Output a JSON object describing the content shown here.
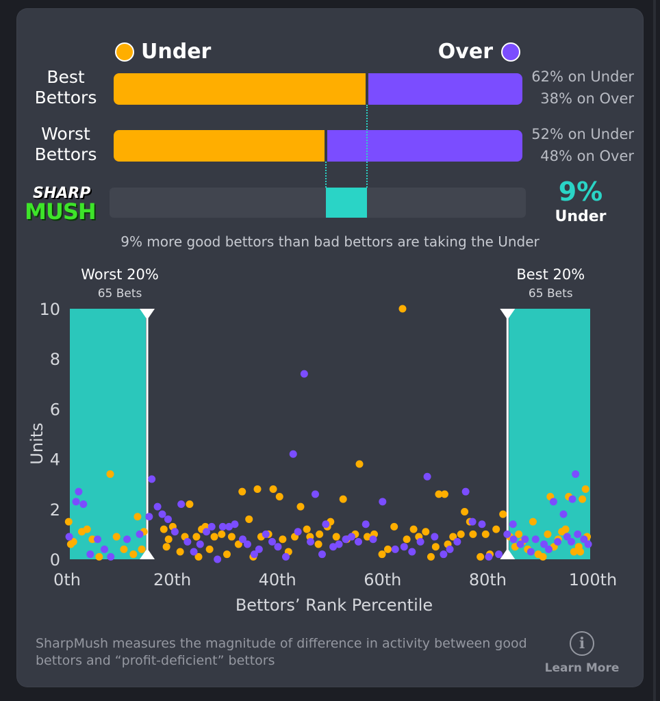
{
  "legend": {
    "under": "Under",
    "over": "Over"
  },
  "rows": [
    {
      "label_line1": "Best",
      "label_line2": "Bettors",
      "under_pct": 62,
      "over_pct": 38,
      "under_text": "62% on Under",
      "over_text": "38% on Over"
    },
    {
      "label_line1": "Worst",
      "label_line2": "Bettors",
      "under_pct": 52,
      "over_pct": 48,
      "under_text": "52% on Under",
      "over_text": "48% on Over"
    }
  ],
  "logo": {
    "line1": "SHARP",
    "line2": "MUSH"
  },
  "sharpmush": {
    "value": "9%",
    "direction": "Under",
    "caption": "9% more good bettors than bad bettors are taking the Under"
  },
  "colors": {
    "under": "#ffae00",
    "over": "#7b4dff",
    "accent": "#2ad4c6"
  },
  "chart_data": {
    "type": "scatter",
    "xlabel": "Bettors’ Rank Percentile",
    "ylabel": "Units",
    "xlim": [
      0,
      100
    ],
    "ylim": [
      0,
      10
    ],
    "x_ticks": [
      "0th",
      "20th",
      "40th",
      "60th",
      "80th",
      "100th"
    ],
    "y_ticks": [
      "0",
      "2",
      "4",
      "6",
      "8",
      "10"
    ],
    "bands": [
      {
        "name": "Worst 20%",
        "sub": "65 Bets",
        "x0": 0,
        "x1": 15.5
      },
      {
        "name": "Best 20%",
        "sub": "65 Bets",
        "x0": 83.5,
        "x1": 100
      }
    ],
    "series": [
      {
        "name": "Under",
        "points": [
          [
            0.3,
            1.5
          ],
          [
            0.7,
            0.6
          ],
          [
            2.8,
            1.1
          ],
          [
            3.8,
            1.2
          ],
          [
            4.8,
            0.8
          ],
          [
            6.1,
            0.1
          ],
          [
            8.2,
            3.4
          ],
          [
            10.8,
            0.4
          ],
          [
            13.4,
            1.7
          ],
          [
            14.2,
            0.4
          ],
          [
            14.6,
            1.1
          ],
          [
            1.2,
            0.7
          ],
          [
            9.4,
            0.9
          ],
          [
            12.6,
            0.2
          ],
          [
            18.4,
            1.2
          ],
          [
            18.9,
            0.5
          ],
          [
            19.3,
            0.8
          ],
          [
            20.1,
            1.3
          ],
          [
            21.5,
            0.3
          ],
          [
            22.4,
            0.9
          ],
          [
            23.3,
            2.2
          ],
          [
            24.6,
            0.9
          ],
          [
            25.6,
            1.2
          ],
          [
            26.3,
            1.3
          ],
          [
            27.1,
            0.4
          ],
          [
            28.0,
            0.9
          ],
          [
            29.4,
            1.0
          ],
          [
            30.4,
            0.2
          ],
          [
            31.3,
            0.9
          ],
          [
            32.6,
            0.6
          ],
          [
            33.3,
            2.7
          ],
          [
            34.6,
            1.6
          ],
          [
            36.2,
            2.8
          ],
          [
            36.9,
            0.9
          ],
          [
            38.3,
            1.0
          ],
          [
            39.2,
            2.8
          ],
          [
            40.4,
            2.5
          ],
          [
            41.0,
            0.8
          ],
          [
            42.1,
            0.3
          ],
          [
            43.3,
            0.9
          ],
          [
            44.4,
            2.1
          ],
          [
            45.6,
            1.2
          ],
          [
            46.2,
            0.9
          ],
          [
            47.8,
            0.6
          ],
          [
            49.5,
            1.3
          ],
          [
            50.1,
            1.5
          ],
          [
            51.2,
            0.9
          ],
          [
            52.5,
            2.4
          ],
          [
            53.2,
            0.8
          ],
          [
            54.8,
            1.0
          ],
          [
            55.6,
            3.8
          ],
          [
            57.1,
            0.9
          ],
          [
            58.4,
            1.0
          ],
          [
            59.9,
            0.2
          ],
          [
            61.0,
            0.4
          ],
          [
            62.2,
            1.3
          ],
          [
            63.8,
            10.0
          ],
          [
            64.6,
            0.8
          ],
          [
            65.9,
            1.2
          ],
          [
            66.9,
            0.9
          ],
          [
            68.2,
            1.1
          ],
          [
            69.2,
            0.1
          ],
          [
            70.1,
            0.5
          ],
          [
            70.7,
            2.6
          ],
          [
            71.8,
            2.6
          ],
          [
            72.4,
            0.6
          ],
          [
            73.4,
            0.9
          ],
          [
            74.9,
            1.0
          ],
          [
            75.6,
            1.9
          ],
          [
            76.6,
            1.5
          ],
          [
            77.2,
            1.0
          ],
          [
            78.6,
            0.1
          ],
          [
            79.6,
            1.0
          ],
          [
            80.4,
            0.2
          ],
          [
            81.6,
            1.2
          ],
          [
            82.9,
            1.8
          ],
          [
            84.2,
            0.9
          ],
          [
            85.2,
            0.5
          ],
          [
            85.9,
            1.0
          ],
          [
            86.6,
            0.7
          ],
          [
            87.6,
            0.4
          ],
          [
            88.6,
            1.5
          ],
          [
            89.6,
            0.2
          ],
          [
            90.5,
            0.1
          ],
          [
            91.4,
            1.0
          ],
          [
            91.9,
            2.5
          ],
          [
            92.6,
            0.5
          ],
          [
            93.4,
            0.8
          ],
          [
            94.1,
            1.1
          ],
          [
            94.8,
            1.2
          ],
          [
            95.4,
            2.5
          ],
          [
            96.4,
            0.3
          ],
          [
            97.3,
            0.5
          ],
          [
            98.0,
            2.4
          ],
          [
            98.6,
            2.8
          ],
          [
            98.9,
            0.9
          ],
          [
            97.6,
            0.3
          ],
          [
            25.0,
            0.1
          ],
          [
            48.0,
            1.0
          ],
          [
            35.4,
            0.1
          ]
        ]
      },
      {
        "name": "Over",
        "points": [
          [
            0.4,
            0.9
          ],
          [
            1.7,
            2.3
          ],
          [
            2.2,
            2.7
          ],
          [
            3.1,
            2.2
          ],
          [
            4.4,
            0.2
          ],
          [
            5.8,
            0.8
          ],
          [
            7.1,
            0.4
          ],
          [
            8.3,
            0.1
          ],
          [
            11.4,
            0.8
          ],
          [
            13.8,
            1.0
          ],
          [
            15.6,
            1.7
          ],
          [
            16.1,
            3.2
          ],
          [
            17.2,
            2.1
          ],
          [
            18.1,
            1.8
          ],
          [
            19.2,
            1.6
          ],
          [
            20.5,
            1.1
          ],
          [
            21.7,
            2.2
          ],
          [
            22.9,
            0.7
          ],
          [
            24.1,
            0.3
          ],
          [
            25.3,
            0.6
          ],
          [
            26.5,
            1.1
          ],
          [
            27.5,
            1.3
          ],
          [
            28.6,
            0.0
          ],
          [
            29.6,
            1.3
          ],
          [
            30.8,
            1.3
          ],
          [
            31.9,
            1.4
          ],
          [
            33.4,
            0.8
          ],
          [
            34.3,
            0.6
          ],
          [
            35.6,
            0.2
          ],
          [
            36.5,
            0.4
          ],
          [
            37.8,
            1.0
          ],
          [
            39.0,
            0.7
          ],
          [
            40.1,
            0.5
          ],
          [
            41.6,
            0.1
          ],
          [
            43.0,
            4.2
          ],
          [
            43.9,
            1.1
          ],
          [
            45.1,
            7.4
          ],
          [
            46.3,
            0.7
          ],
          [
            47.2,
            2.6
          ],
          [
            48.5,
            0.2
          ],
          [
            49.2,
            1.4
          ],
          [
            50.6,
            0.5
          ],
          [
            51.7,
            0.6
          ],
          [
            53.0,
            0.8
          ],
          [
            54.1,
            0.9
          ],
          [
            55.4,
            0.7
          ],
          [
            56.8,
            1.4
          ],
          [
            58.2,
            0.8
          ],
          [
            60.0,
            2.3
          ],
          [
            62.4,
            0.4
          ],
          [
            64.1,
            0.5
          ],
          [
            65.6,
            0.3
          ],
          [
            67.2,
            0.7
          ],
          [
            68.5,
            3.3
          ],
          [
            69.9,
            0.9
          ],
          [
            71.6,
            0.2
          ],
          [
            72.8,
            0.4
          ],
          [
            74.2,
            0.7
          ],
          [
            75.8,
            2.7
          ],
          [
            77.1,
            1.5
          ],
          [
            78.9,
            1.4
          ],
          [
            80.2,
            0.1
          ],
          [
            82.1,
            0.2
          ],
          [
            83.7,
            1.0
          ],
          [
            84.8,
            1.4
          ],
          [
            86.2,
            0.6
          ],
          [
            87.1,
            0.8
          ],
          [
            88.2,
            0.3
          ],
          [
            89.1,
            0.8
          ],
          [
            90.7,
            0.6
          ],
          [
            91.6,
            0.4
          ],
          [
            92.5,
            2.3
          ],
          [
            93.3,
            0.7
          ],
          [
            94.4,
            1.8
          ],
          [
            95.1,
            0.9
          ],
          [
            96.1,
            2.4
          ],
          [
            96.7,
            3.4
          ],
          [
            97.1,
            1.0
          ],
          [
            98.3,
            0.8
          ],
          [
            99.1,
            0.6
          ],
          [
            95.9,
            0.7
          ],
          [
            84.9,
            0.8
          ]
        ]
      }
    ]
  },
  "footnote": "SharpMush measures the magnitude of difference in activity between good bettors and “profit-deficient” bettors",
  "learn_more": {
    "icon": "info-icon",
    "glyph": "i",
    "label": "Learn More"
  }
}
